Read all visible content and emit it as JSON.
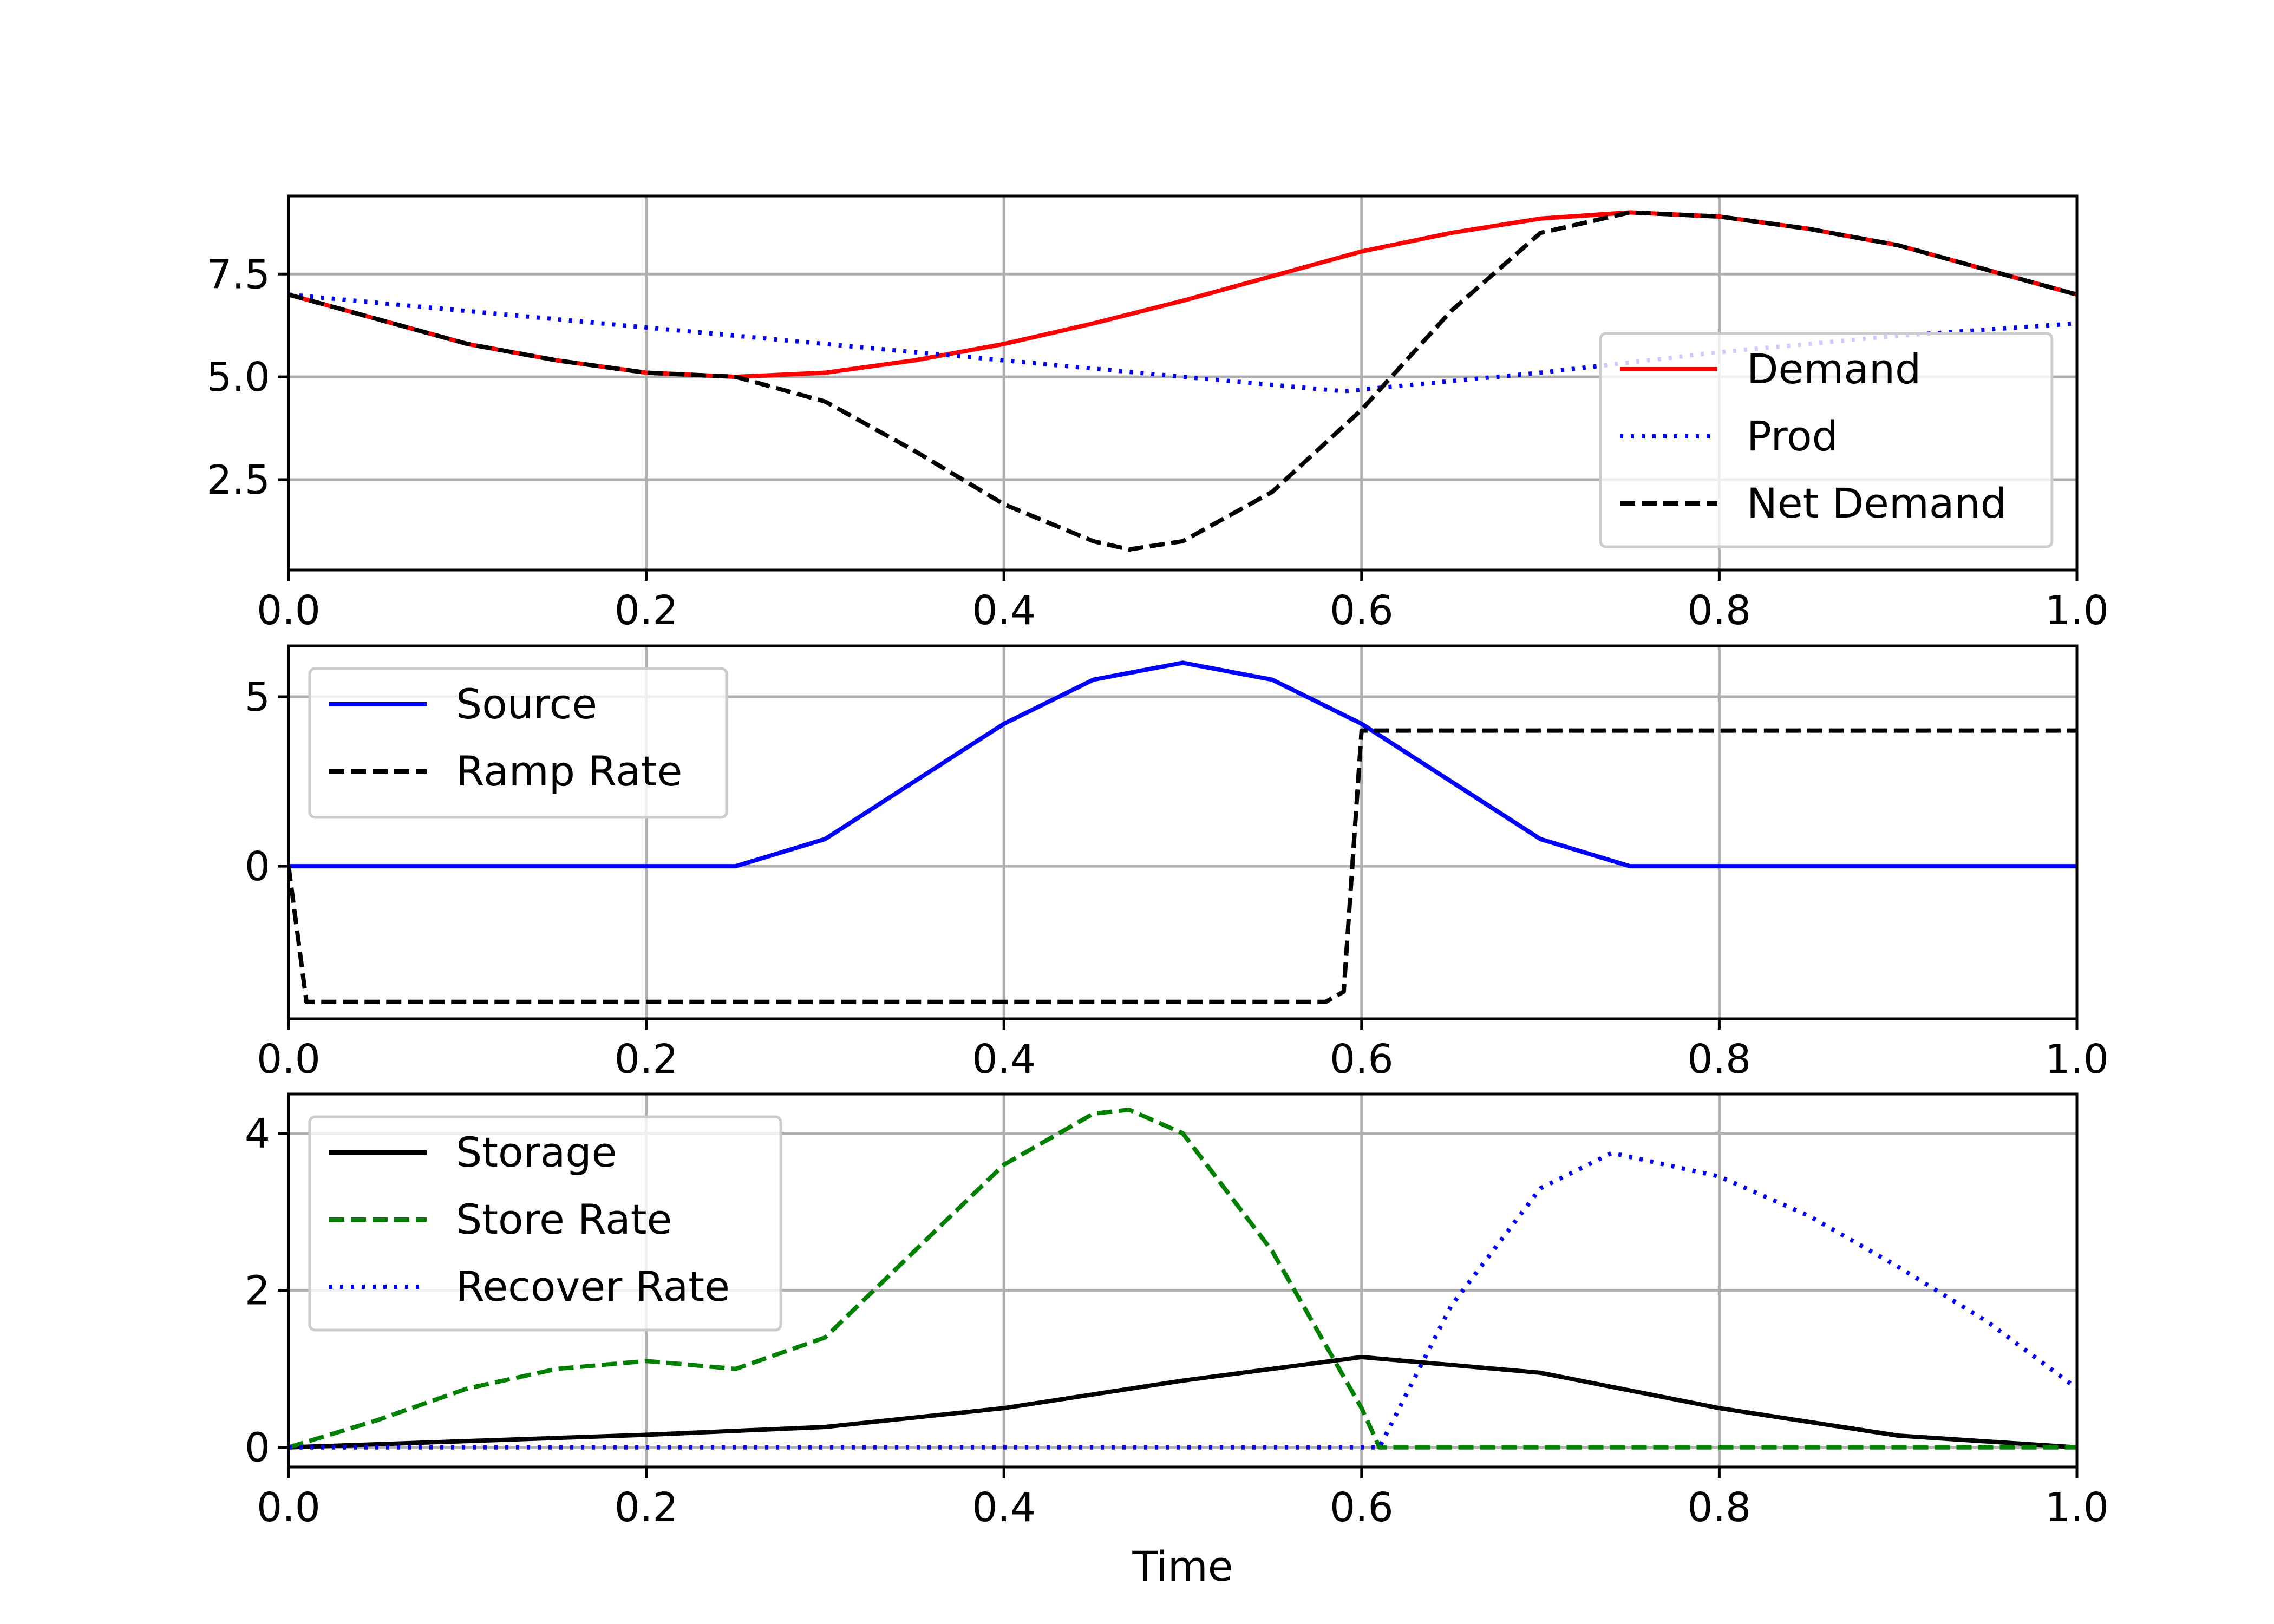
{
  "chart_data": [
    {
      "type": "line",
      "title": "",
      "xlabel": "",
      "ylabel": "",
      "xlim": [
        0,
        1
      ],
      "ylim": [
        0.3,
        9.4
      ],
      "xticks": [
        "0.0",
        "0.2",
        "0.4",
        "0.6",
        "0.8",
        "1.0"
      ],
      "yticks": [
        {
          "value": 2.5,
          "label": "2.5"
        },
        {
          "value": 5.0,
          "label": "5.0"
        },
        {
          "value": 7.5,
          "label": "7.5"
        }
      ],
      "grid": true,
      "legend_position": "lower-right",
      "series": [
        {
          "name": "Demand",
          "color": "#ff0000",
          "style": "solid",
          "x": [
            0,
            0.05,
            0.1,
            0.15,
            0.2,
            0.25,
            0.3,
            0.35,
            0.4,
            0.45,
            0.5,
            0.55,
            0.6,
            0.65,
            0.7,
            0.75,
            0.8,
            0.85,
            0.9,
            0.95,
            1.0
          ],
          "y": [
            7.0,
            6.4,
            5.8,
            5.4,
            5.1,
            5.0,
            5.1,
            5.4,
            5.8,
            6.3,
            6.85,
            7.45,
            8.05,
            8.5,
            8.85,
            9.0,
            8.9,
            8.6,
            8.2,
            7.6,
            7.0
          ]
        },
        {
          "name": "Prod",
          "color": "#0000ff",
          "style": "dotted",
          "x": [
            0,
            0.1,
            0.2,
            0.3,
            0.4,
            0.5,
            0.59,
            0.7,
            0.8,
            0.9,
            1.0
          ],
          "y": [
            7.0,
            6.6,
            6.2,
            5.8,
            5.4,
            5.0,
            4.65,
            5.1,
            5.6,
            6.0,
            6.3
          ]
        },
        {
          "name": "Net Demand",
          "color": "#000000",
          "style": "dashed",
          "x": [
            0,
            0.05,
            0.1,
            0.15,
            0.2,
            0.25,
            0.3,
            0.35,
            0.4,
            0.45,
            0.47,
            0.5,
            0.55,
            0.6,
            0.65,
            0.7,
            0.75,
            0.8,
            0.85,
            0.9,
            0.95,
            1.0
          ],
          "y": [
            7.0,
            6.4,
            5.8,
            5.4,
            5.1,
            5.0,
            4.4,
            3.2,
            1.9,
            1.0,
            0.8,
            1.0,
            2.2,
            4.2,
            6.6,
            8.5,
            9.0,
            8.9,
            8.6,
            8.2,
            7.6,
            7.0
          ]
        }
      ]
    },
    {
      "type": "line",
      "title": "",
      "xlabel": "",
      "ylabel": "",
      "xlim": [
        0,
        1
      ],
      "ylim": [
        -4.5,
        6.5
      ],
      "xticks": [
        "0.0",
        "0.2",
        "0.4",
        "0.6",
        "0.8",
        "1.0"
      ],
      "yticks": [
        {
          "value": 0,
          "label": "0"
        },
        {
          "value": 5,
          "label": "5"
        }
      ],
      "grid": true,
      "legend_position": "upper-left",
      "series": [
        {
          "name": "Source",
          "color": "#0000ff",
          "style": "solid",
          "x": [
            0,
            0.1,
            0.2,
            0.25,
            0.3,
            0.35,
            0.4,
            0.45,
            0.5,
            0.55,
            0.6,
            0.65,
            0.7,
            0.75,
            0.8,
            0.9,
            1.0
          ],
          "y": [
            0,
            0,
            0,
            0,
            0.8,
            2.5,
            4.2,
            5.5,
            6.0,
            5.5,
            4.2,
            2.5,
            0.8,
            0,
            0,
            0,
            0
          ]
        },
        {
          "name": "Ramp Rate",
          "color": "#000000",
          "style": "dashed",
          "x": [
            0,
            0.01,
            0.2,
            0.4,
            0.58,
            0.59,
            0.6,
            0.8,
            1.0
          ],
          "y": [
            0,
            -4.0,
            -4.0,
            -4.0,
            -4.0,
            -3.7,
            4.0,
            4.0,
            4.0
          ]
        }
      ]
    },
    {
      "type": "line",
      "title": "",
      "xlabel": "Time",
      "ylabel": "",
      "xlim": [
        0,
        1
      ],
      "ylim": [
        -0.25,
        4.5
      ],
      "xticks": [
        "0.0",
        "0.2",
        "0.4",
        "0.6",
        "0.8",
        "1.0"
      ],
      "yticks": [
        {
          "value": 0,
          "label": "0"
        },
        {
          "value": 2,
          "label": "2"
        },
        {
          "value": 4,
          "label": "4"
        }
      ],
      "grid": true,
      "legend_position": "upper-left",
      "series": [
        {
          "name": "Storage",
          "color": "#000000",
          "style": "solid",
          "x": [
            0,
            0.1,
            0.2,
            0.3,
            0.4,
            0.5,
            0.6,
            0.7,
            0.8,
            0.9,
            1.0
          ],
          "y": [
            0,
            0.08,
            0.16,
            0.26,
            0.5,
            0.85,
            1.15,
            0.95,
            0.5,
            0.15,
            0
          ]
        },
        {
          "name": "Store Rate",
          "color": "#008000",
          "style": "dashed",
          "x": [
            0,
            0.05,
            0.1,
            0.15,
            0.2,
            0.25,
            0.3,
            0.35,
            0.4,
            0.45,
            0.47,
            0.5,
            0.55,
            0.6,
            0.61,
            0.7,
            0.8,
            0.9,
            1.0
          ],
          "y": [
            0,
            0.35,
            0.75,
            1.0,
            1.1,
            1.0,
            1.4,
            2.5,
            3.6,
            4.25,
            4.3,
            4.0,
            2.5,
            0.5,
            0,
            0,
            0,
            0,
            0
          ]
        },
        {
          "name": "Recover Rate",
          "color": "#0000ff",
          "style": "dotted",
          "x": [
            0,
            0.2,
            0.4,
            0.6,
            0.61,
            0.65,
            0.7,
            0.74,
            0.8,
            0.85,
            0.9,
            0.95,
            1.0
          ],
          "y": [
            0,
            0,
            0,
            0,
            0,
            1.8,
            3.3,
            3.75,
            3.45,
            2.95,
            2.3,
            1.6,
            0.75
          ]
        }
      ]
    }
  ]
}
